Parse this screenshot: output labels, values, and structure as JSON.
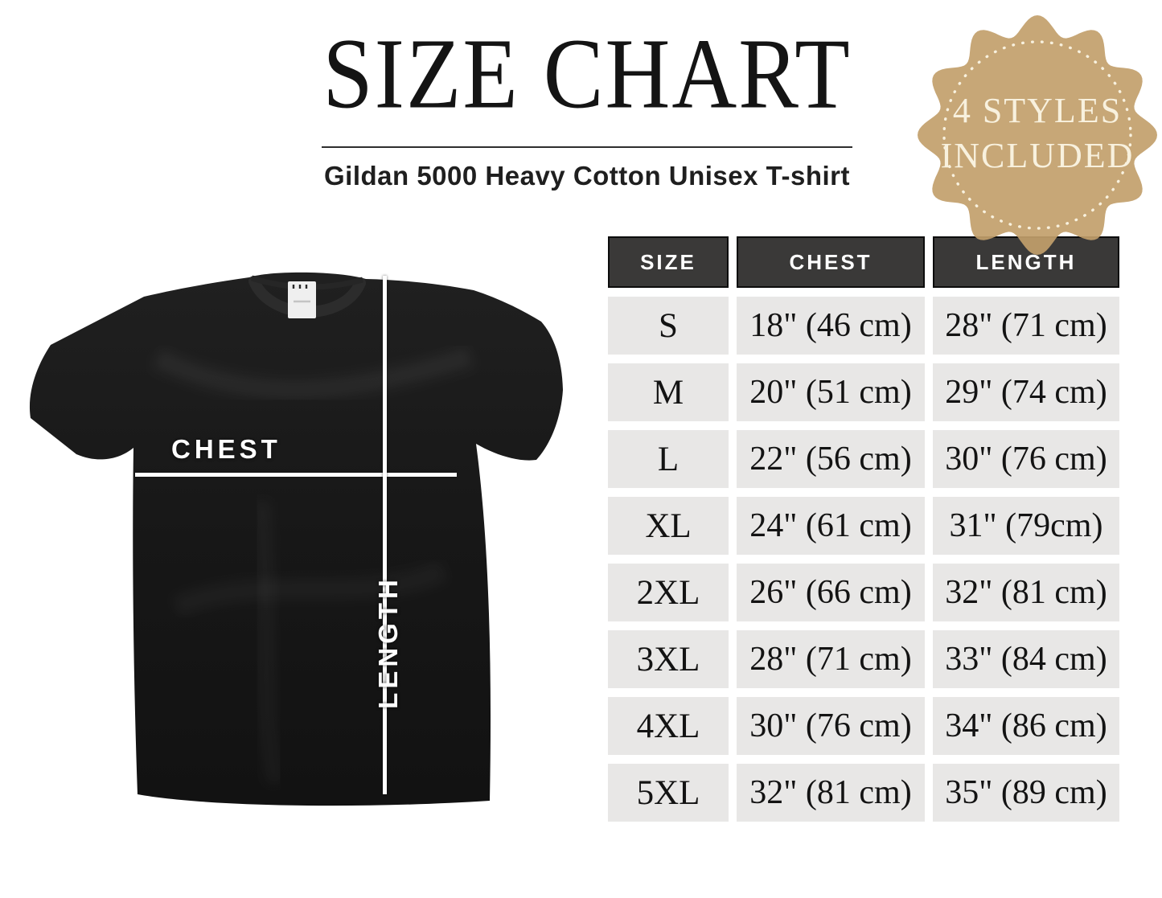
{
  "header": {
    "title": "SIZE CHART",
    "subtitle": "Gildan 5000 Heavy Cotton Unisex T-shirt"
  },
  "badge": {
    "line1": "4 STYLES",
    "line2": "INCLUDED",
    "bg_color": "#c2a06b",
    "text_color": "#f8f1de"
  },
  "shirt": {
    "chest_label": "CHEST",
    "length_label": "LENGTH",
    "color": "#181818"
  },
  "size_table": {
    "columns": [
      "SIZE",
      "CHEST",
      "LENGTH"
    ],
    "header_bg": "#3a3938",
    "header_text_color": "#ffffff",
    "cell_bg": "#e8e7e6",
    "cell_text_color": "#131313",
    "rows": [
      {
        "size": "S",
        "chest": "18\" (46 cm)",
        "length": "28\" (71 cm)"
      },
      {
        "size": "M",
        "chest": "20\" (51 cm)",
        "length": "29\" (74 cm)"
      },
      {
        "size": "L",
        "chest": "22\" (56 cm)",
        "length": "30\" (76 cm)"
      },
      {
        "size": "XL",
        "chest": "24\" (61 cm)",
        "length": "31\" (79cm)"
      },
      {
        "size": "2XL",
        "chest": "26\" (66 cm)",
        "length": "32\" (81 cm)"
      },
      {
        "size": "3XL",
        "chest": "28\" (71 cm)",
        "length": "33\" (84 cm)"
      },
      {
        "size": "4XL",
        "chest": "30\" (76 cm)",
        "length": "34\" (86 cm)"
      },
      {
        "size": "5XL",
        "chest": "32\" (81 cm)",
        "length": "35\" (89 cm)"
      }
    ]
  },
  "chart_data": {
    "type": "table",
    "title": "SIZE CHART",
    "subtitle": "Gildan 5000 Heavy Cotton Unisex T-shirt",
    "columns": [
      "SIZE",
      "CHEST",
      "LENGTH"
    ],
    "rows": [
      [
        "S",
        "18\" (46 cm)",
        "28\" (71 cm)"
      ],
      [
        "M",
        "20\" (51 cm)",
        "29\" (74 cm)"
      ],
      [
        "L",
        "22\" (56 cm)",
        "30\" (76 cm)"
      ],
      [
        "XL",
        "24\" (61 cm)",
        "31\" (79cm)"
      ],
      [
        "2XL",
        "26\" (66 cm)",
        "32\" (81 cm)"
      ],
      [
        "3XL",
        "28\" (71 cm)",
        "33\" (84 cm)"
      ],
      [
        "4XL",
        "30\" (76 cm)",
        "34\" (86 cm)"
      ],
      [
        "5XL",
        "32\" (81 cm)",
        "35\" (89 cm)"
      ]
    ],
    "units": {
      "chest_in": [
        18,
        20,
        22,
        24,
        26,
        28,
        30,
        32
      ],
      "chest_cm": [
        46,
        51,
        56,
        61,
        66,
        71,
        76,
        81
      ],
      "length_in": [
        28,
        29,
        30,
        31,
        32,
        33,
        34,
        35
      ],
      "length_cm": [
        71,
        74,
        76,
        79,
        81,
        84,
        86,
        89
      ]
    },
    "badge_note": "4 STYLES INCLUDED"
  }
}
